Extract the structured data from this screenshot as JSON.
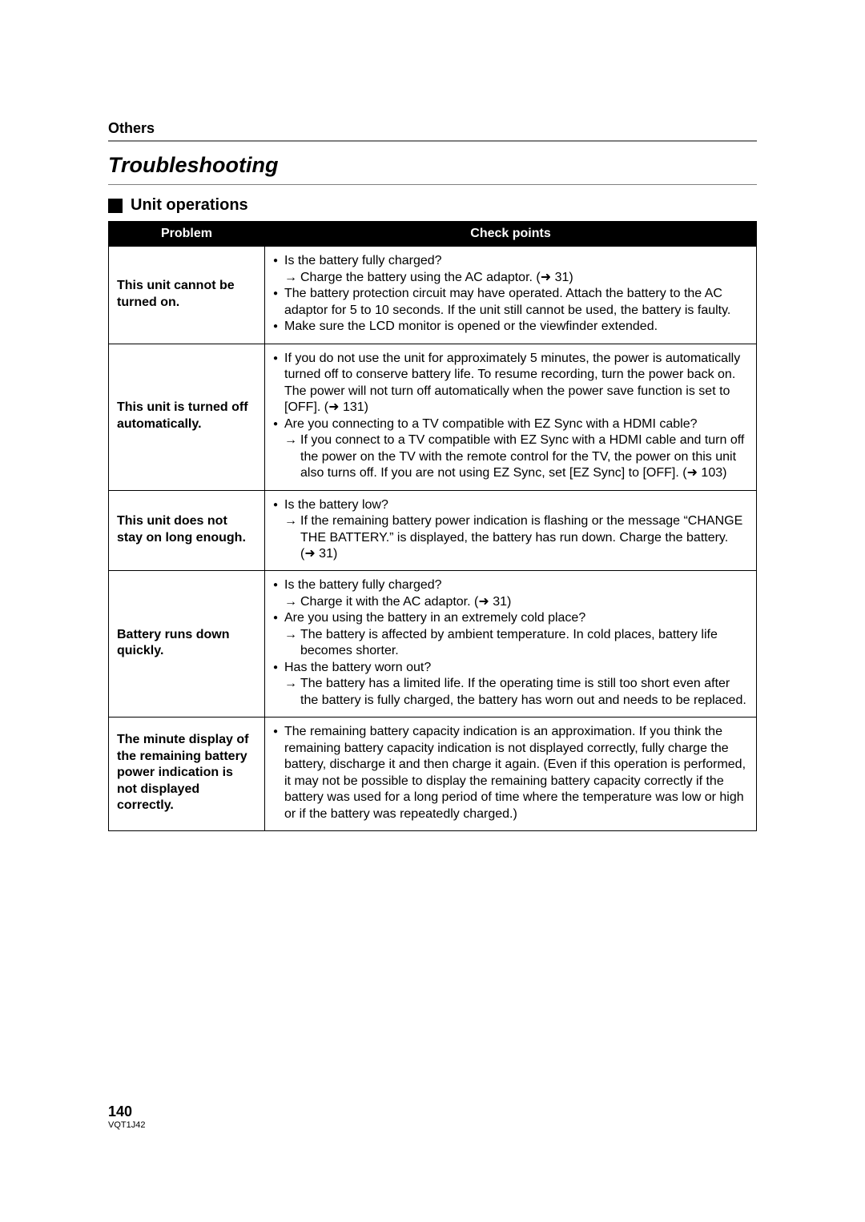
{
  "section_label": "Others",
  "title": "Troubleshooting",
  "subheading": "Unit operations",
  "table": {
    "headers": {
      "problem": "Problem",
      "check": "Check points"
    },
    "rows": [
      {
        "problem": "This unit cannot be turned on.",
        "items": [
          {
            "text": "Is the battery fully charged?",
            "sub": "Charge the battery using the AC adaptor.",
            "ref": "31"
          },
          {
            "text": "The battery protection circuit may have operated. Attach the battery to the AC adaptor for 5 to 10 seconds. If the unit still cannot be used, the battery is faulty."
          },
          {
            "text": "Make sure the LCD monitor is opened or the viewfinder extended."
          }
        ]
      },
      {
        "problem": "This unit is turned off automatically.",
        "items": [
          {
            "text": "If you do not use the unit for approximately 5 minutes, the power is automatically turned off to conserve battery life. To resume recording, turn the power back on. The power will not turn off automatically when the power save function is set to [OFF].",
            "ref_inline": "131"
          },
          {
            "text": "Are you connecting to a TV compatible with EZ Sync with a HDMI cable?",
            "sub": "If you connect to a TV compatible with EZ Sync with a HDMI cable and turn off the power on the TV with the remote control for the TV, the power on this unit also turns off. If you are not using EZ Sync, set [EZ Sync] to [OFF].",
            "ref": "103"
          }
        ]
      },
      {
        "problem": "This unit does not stay on long enough.",
        "items": [
          {
            "text": "Is the battery low?",
            "sub": "If the remaining battery power indication is flashing or the message “CHANGE THE BATTERY.” is displayed, the battery has run down. Charge the battery.",
            "ref": "31"
          }
        ]
      },
      {
        "problem": "Battery runs down quickly.",
        "items": [
          {
            "text": "Is the battery fully charged?",
            "sub": "Charge it with the AC adaptor.",
            "ref": "31"
          },
          {
            "text": "Are you using the battery in an extremely cold place?",
            "sub": "The battery is affected by ambient temperature. In cold places, battery life becomes shorter."
          },
          {
            "text": "Has the battery worn out?",
            "sub": "The battery has a limited life. If the operating time is still too short even after the battery is fully charged, the battery has worn out and needs to be replaced."
          }
        ]
      },
      {
        "problem": "The minute display of the remaining battery power indication is not displayed correctly.",
        "items": [
          {
            "text": "The remaining battery capacity indication is an approximation. If you think the remaining battery capacity indication is not displayed correctly, fully charge the battery, discharge it and then charge it again. (Even if this operation is performed, it may not be possible to display the remaining battery capacity correctly if the battery was used for a long period of time where the temperature was low or high or if the battery was repeatedly charged.)"
          }
        ]
      }
    ]
  },
  "footer": {
    "page": "140",
    "doc": "VQT1J42"
  }
}
